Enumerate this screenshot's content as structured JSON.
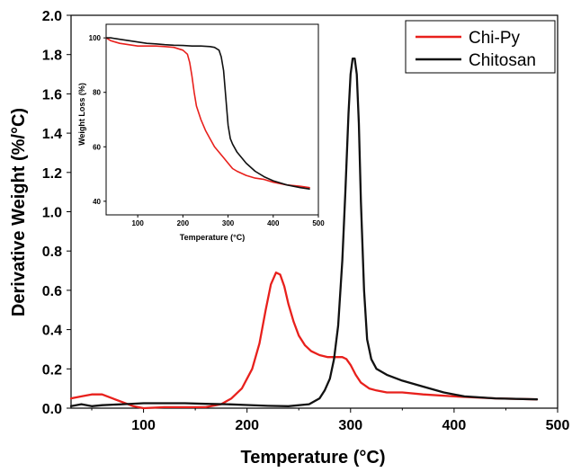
{
  "chart_data": [
    {
      "type": "line",
      "xlabel": "Temperature (°C)",
      "ylabel": "Derivative Weight (%/°C)",
      "xlim": [
        30,
        500
      ],
      "ylim": [
        0.0,
        2.0
      ],
      "xticks": [
        100,
        200,
        300,
        400,
        500
      ],
      "yticks": [
        0.0,
        0.2,
        0.4,
        0.6,
        0.8,
        1.0,
        1.2,
        1.4,
        1.6,
        1.8,
        2.0
      ],
      "ytick_labels": [
        "0.0",
        "0.2",
        "0.4",
        "0.6",
        "0.8",
        "1.0",
        "1.2",
        "1.4",
        "1.6",
        "1.8",
        "2.0"
      ],
      "legend_position": "top-right",
      "grid": false,
      "series": [
        {
          "name": "Chi-Py",
          "color": "#e8201c",
          "x": [
            30,
            40,
            50,
            60,
            70,
            80,
            90,
            100,
            120,
            140,
            160,
            175,
            185,
            195,
            205,
            212,
            218,
            223,
            228,
            232,
            236,
            240,
            245,
            250,
            256,
            262,
            270,
            278,
            285,
            292,
            296,
            300,
            305,
            310,
            318,
            325,
            335,
            350,
            370,
            400,
            440,
            480
          ],
          "y": [
            0.05,
            0.06,
            0.07,
            0.07,
            0.05,
            0.03,
            0.01,
            0.0,
            0.005,
            0.005,
            0.005,
            0.02,
            0.05,
            0.1,
            0.2,
            0.33,
            0.5,
            0.63,
            0.69,
            0.68,
            0.62,
            0.53,
            0.44,
            0.37,
            0.32,
            0.29,
            0.27,
            0.26,
            0.26,
            0.26,
            0.25,
            0.22,
            0.17,
            0.13,
            0.1,
            0.09,
            0.08,
            0.08,
            0.07,
            0.06,
            0.05,
            0.045
          ]
        },
        {
          "name": "Chitosan",
          "color": "#111111",
          "x": [
            30,
            40,
            50,
            60,
            80,
            100,
            120,
            140,
            160,
            180,
            200,
            220,
            240,
            260,
            270,
            275,
            280,
            284,
            288,
            292,
            295,
            298,
            300,
            302,
            304,
            306,
            308,
            310,
            313,
            316,
            320,
            325,
            335,
            350,
            370,
            390,
            410,
            440,
            480
          ],
          "y": [
            0.01,
            0.02,
            0.01,
            0.015,
            0.02,
            0.025,
            0.025,
            0.025,
            0.022,
            0.02,
            0.016,
            0.012,
            0.01,
            0.02,
            0.05,
            0.09,
            0.15,
            0.25,
            0.42,
            0.75,
            1.1,
            1.5,
            1.7,
            1.78,
            1.78,
            1.7,
            1.45,
            1.05,
            0.6,
            0.35,
            0.25,
            0.2,
            0.17,
            0.14,
            0.11,
            0.08,
            0.06,
            0.05,
            0.045
          ]
        }
      ]
    },
    {
      "type": "line",
      "xlabel": "Temperature (°C)",
      "ylabel": "Weight Loss (%)",
      "xlim": [
        30,
        500
      ],
      "ylim": [
        35,
        105
      ],
      "xticks": [
        100,
        200,
        300,
        400,
        500
      ],
      "yticks": [
        40,
        60,
        80,
        100
      ],
      "series": [
        {
          "name": "Chi-Py",
          "color": "#e8201c",
          "x": [
            30,
            40,
            50,
            60,
            80,
            100,
            120,
            140,
            160,
            180,
            200,
            210,
            215,
            220,
            225,
            230,
            240,
            250,
            260,
            270,
            280,
            290,
            300,
            310,
            320,
            340,
            360,
            380,
            400,
            430,
            460,
            480
          ],
          "y": [
            100,
            99,
            98.5,
            98,
            97.5,
            97,
            97,
            97,
            96.8,
            96.5,
            95.5,
            94,
            91,
            86,
            80,
            75,
            70,
            66,
            63,
            60,
            58,
            56,
            54,
            52,
            51,
            49.5,
            48.5,
            48,
            47,
            46,
            45.5,
            45
          ]
        },
        {
          "name": "Chitosan",
          "color": "#111111",
          "x": [
            30,
            40,
            60,
            80,
            100,
            120,
            140,
            160,
            180,
            200,
            220,
            240,
            260,
            270,
            280,
            285,
            290,
            295,
            300,
            305,
            310,
            320,
            340,
            360,
            380,
            400,
            430,
            460,
            480
          ],
          "y": [
            100,
            100,
            99.5,
            99,
            98.5,
            98,
            97.8,
            97.5,
            97.3,
            97.2,
            97,
            97,
            96.8,
            96.5,
            95.5,
            93,
            88,
            78,
            68,
            63,
            61,
            58,
            54,
            51,
            49,
            47.5,
            46,
            45,
            44.5
          ]
        }
      ]
    }
  ]
}
